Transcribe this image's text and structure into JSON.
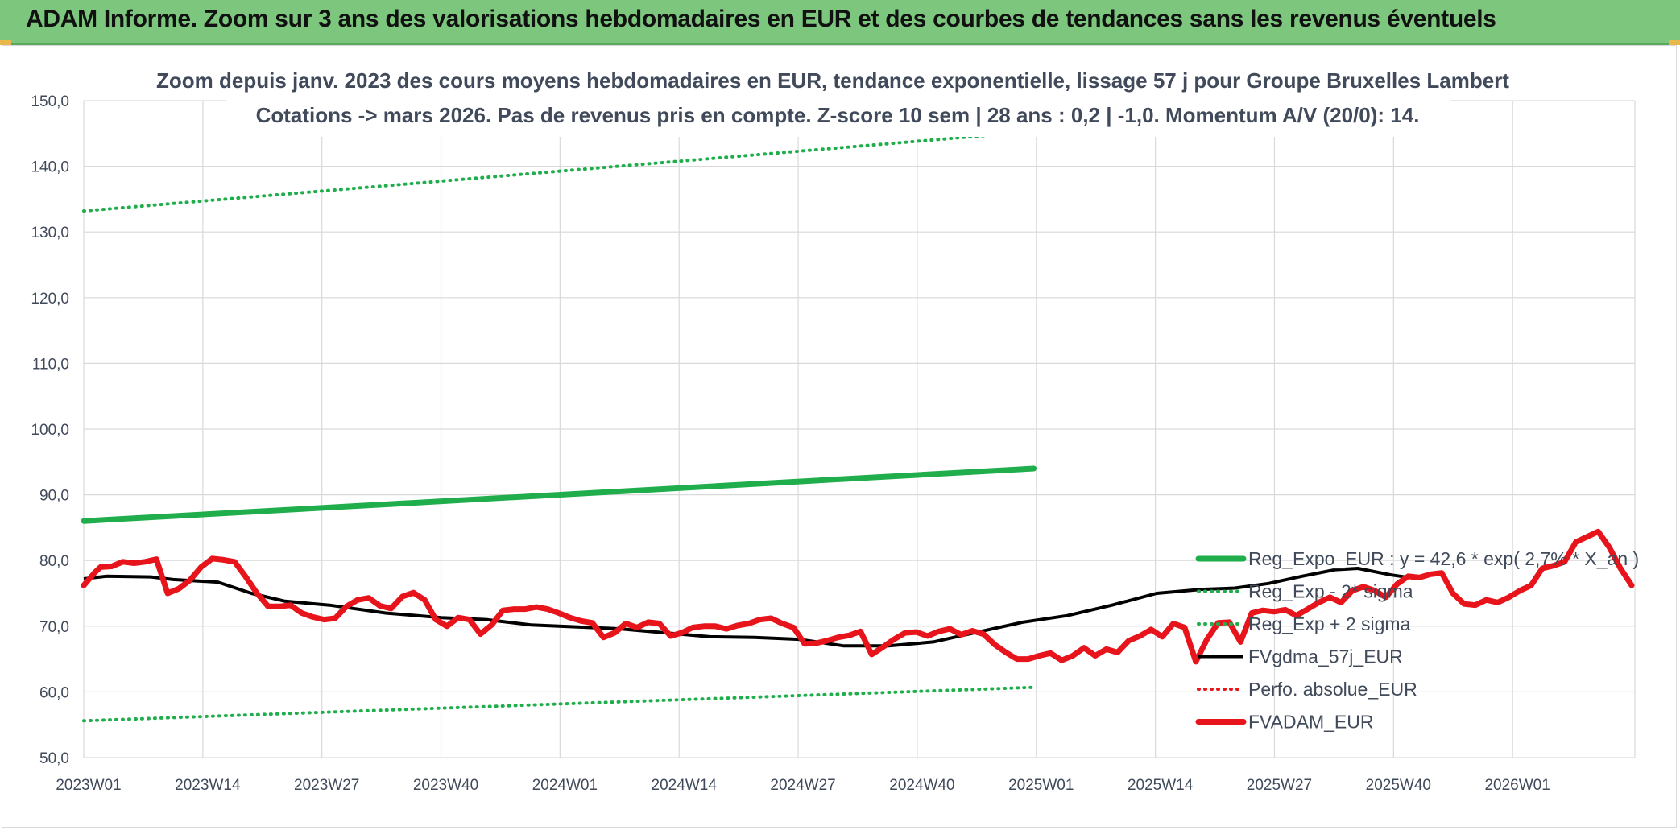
{
  "header": {
    "title": "ADAM Informe. Zoom sur 3 ans des valorisations hebdomadaires en EUR et des courbes de tendances sans les revenus éventuels"
  },
  "colors": {
    "banner": "#7cc67e",
    "trend": "#1fae4b",
    "price": "#e8141b",
    "smooth": "#000000",
    "perfo": "#e8141b",
    "grid": "#d9d9d9",
    "text": "#404a5a"
  },
  "chart_data": {
    "type": "line",
    "title": "Zoom depuis janv. 2023 des cours moyens hebdomadaires en EUR, tendance exponentielle, lissage 57 j pour Groupe Bruxelles Lambert",
    "subtitle": "Cotations -> mars 2026. Pas de revenus pris en compte. Z-score 10 sem | 28 ans : 0,2 | -1,0. Momentum A/V (20/0): 14.",
    "xlabel": "",
    "ylabel": "",
    "ylim": [
      50,
      150
    ],
    "yticks": [
      "50,0",
      "60,0",
      "70,0",
      "80,0",
      "90,0",
      "100,0",
      "110,0",
      "120,0",
      "130,0",
      "140,0",
      "150,0"
    ],
    "ytick_values": [
      50,
      60,
      70,
      80,
      90,
      100,
      110,
      120,
      130,
      140,
      150
    ],
    "xticks": [
      "2023W01",
      "2023W14",
      "2023W27",
      "2023W40",
      "2024W01",
      "2024W14",
      "2024W27",
      "2024W40",
      "2025W01",
      "2025W14",
      "2025W27",
      "2025W40",
      "2026W01"
    ],
    "xtick_step_weeks": 13,
    "n_weeks": 171,
    "grid": true,
    "legend_position": "bottom-right",
    "series": [
      {
        "name": "Reg_Expo_EUR : y = 42,6 * exp( 2,7% * X_an )",
        "style": "solid-thick",
        "color": "#1fae4b",
        "anchors": [
          [
            0,
            86.0
          ],
          [
            170,
            94.0
          ]
        ]
      },
      {
        "name": "Reg_Exp - 2* sigma",
        "style": "dotted",
        "color": "#1fae4b",
        "anchors": [
          [
            0,
            55.6
          ],
          [
            170,
            60.7
          ]
        ]
      },
      {
        "name": "Reg_Exp + 2 sigma",
        "style": "dotted",
        "color": "#1fae4b",
        "anchors": [
          [
            0,
            133.2
          ],
          [
            170,
            145.3
          ]
        ]
      },
      {
        "name": "FVgdma_57j_EUR",
        "style": "solid",
        "color": "#000000",
        "anchors": [
          [
            0,
            77.2
          ],
          [
            4,
            77.6
          ],
          [
            12,
            77.5
          ],
          [
            16,
            77.1
          ],
          [
            24,
            76.7
          ],
          [
            30,
            75.0
          ],
          [
            36,
            73.8
          ],
          [
            44,
            73.2
          ],
          [
            54,
            72.0
          ],
          [
            64,
            71.3
          ],
          [
            72,
            71.0
          ],
          [
            80,
            70.2
          ],
          [
            88,
            69.9
          ],
          [
            96,
            69.6
          ],
          [
            104,
            69.0
          ],
          [
            112,
            68.4
          ],
          [
            120,
            68.3
          ],
          [
            128,
            68.0
          ],
          [
            136,
            67.0
          ],
          [
            144,
            67.0
          ],
          [
            152,
            67.6
          ],
          [
            160,
            69.1
          ],
          [
            168,
            70.6
          ],
          [
            176,
            71.6
          ],
          [
            184,
            73.2
          ],
          [
            192,
            75.0
          ],
          [
            200,
            75.6
          ],
          [
            206,
            75.8
          ],
          [
            212,
            76.5
          ],
          [
            218,
            77.6
          ],
          [
            224,
            78.6
          ],
          [
            228,
            78.8
          ],
          [
            234,
            77.8
          ],
          [
            238,
            77.3
          ]
        ]
      },
      {
        "name": "Perfo. absolue_EUR",
        "style": "dotted",
        "color": "#e8141b",
        "anchors": []
      },
      {
        "name": "FVADAM_EUR",
        "style": "solid-thick",
        "color": "#e8141b",
        "anchors": [
          [
            0,
            76.2
          ],
          [
            2,
            78.2
          ],
          [
            3,
            79.0
          ],
          [
            5,
            79.1
          ],
          [
            7,
            79.8
          ],
          [
            9,
            79.6
          ],
          [
            11,
            79.8
          ],
          [
            13,
            80.2
          ],
          [
            15,
            75.0
          ],
          [
            17,
            75.7
          ],
          [
            19,
            77.0
          ],
          [
            21,
            79.0
          ],
          [
            23,
            80.3
          ],
          [
            25,
            80.1
          ],
          [
            27,
            79.8
          ],
          [
            29,
            77.5
          ],
          [
            31,
            75.0
          ],
          [
            33,
            73.0
          ],
          [
            35,
            73.0
          ],
          [
            37,
            73.2
          ],
          [
            39,
            72.0
          ],
          [
            41,
            71.4
          ],
          [
            43,
            71.0
          ],
          [
            45,
            71.2
          ],
          [
            47,
            73.0
          ],
          [
            49,
            74.0
          ],
          [
            51,
            74.3
          ],
          [
            53,
            73.1
          ],
          [
            55,
            72.7
          ],
          [
            57,
            74.5
          ],
          [
            59,
            75.1
          ],
          [
            61,
            74.0
          ],
          [
            63,
            71.0
          ],
          [
            65,
            70.0
          ],
          [
            67,
            71.3
          ],
          [
            69,
            71.0
          ],
          [
            71,
            68.8
          ],
          [
            73,
            70.2
          ],
          [
            75,
            72.4
          ],
          [
            77,
            72.6
          ],
          [
            79,
            72.6
          ],
          [
            81,
            72.9
          ],
          [
            83,
            72.6
          ],
          [
            85,
            72.0
          ],
          [
            87,
            71.3
          ],
          [
            89,
            70.8
          ],
          [
            91,
            70.5
          ],
          [
            93,
            68.3
          ],
          [
            95,
            69.0
          ],
          [
            97,
            70.4
          ],
          [
            99,
            69.8
          ],
          [
            101,
            70.6
          ],
          [
            103,
            70.4
          ],
          [
            105,
            68.5
          ],
          [
            107,
            69.0
          ],
          [
            109,
            69.8
          ],
          [
            111,
            70.0
          ],
          [
            113,
            70.0
          ],
          [
            115,
            69.6
          ],
          [
            117,
            70.1
          ],
          [
            119,
            70.4
          ],
          [
            121,
            71.0
          ],
          [
            123,
            71.2
          ],
          [
            125,
            70.4
          ],
          [
            127,
            69.8
          ],
          [
            129,
            67.3
          ],
          [
            131,
            67.4
          ],
          [
            133,
            67.8
          ],
          [
            135,
            68.3
          ],
          [
            137,
            68.6
          ],
          [
            139,
            69.2
          ],
          [
            141,
            65.7
          ],
          [
            143,
            66.8
          ],
          [
            145,
            68.0
          ],
          [
            147,
            69.0
          ],
          [
            149,
            69.1
          ],
          [
            151,
            68.5
          ],
          [
            153,
            69.2
          ],
          [
            155,
            69.6
          ],
          [
            157,
            68.7
          ],
          [
            159,
            69.3
          ],
          [
            161,
            68.8
          ],
          [
            163,
            67.2
          ],
          [
            165,
            66.0
          ],
          [
            167,
            65.0
          ],
          [
            169,
            65.0
          ],
          [
            171,
            65.5
          ],
          [
            173,
            65.9
          ],
          [
            175,
            64.8
          ],
          [
            177,
            65.5
          ],
          [
            179,
            66.7
          ],
          [
            181,
            65.5
          ],
          [
            183,
            66.5
          ],
          [
            185,
            66.0
          ],
          [
            187,
            67.8
          ],
          [
            189,
            68.5
          ],
          [
            191,
            69.5
          ],
          [
            193,
            68.4
          ],
          [
            195,
            70.4
          ],
          [
            197,
            69.8
          ],
          [
            199,
            64.6
          ],
          [
            201,
            68.0
          ],
          [
            203,
            70.5
          ],
          [
            205,
            70.6
          ],
          [
            207,
            67.6
          ],
          [
            209,
            72.0
          ],
          [
            211,
            72.4
          ],
          [
            213,
            72.2
          ],
          [
            215,
            72.5
          ],
          [
            217,
            71.6
          ],
          [
            219,
            72.6
          ],
          [
            221,
            73.6
          ],
          [
            223,
            74.4
          ],
          [
            225,
            73.6
          ],
          [
            227,
            75.4
          ],
          [
            229,
            76.0
          ],
          [
            231,
            75.4
          ],
          [
            233,
            74.4
          ],
          [
            235,
            76.4
          ],
          [
            237,
            77.6
          ],
          [
            239,
            77.4
          ],
          [
            241,
            77.9
          ],
          [
            243,
            78.1
          ],
          [
            245,
            75.0
          ],
          [
            247,
            73.4
          ],
          [
            249,
            73.2
          ],
          [
            251,
            74.0
          ],
          [
            253,
            73.6
          ],
          [
            255,
            74.4
          ],
          [
            257,
            75.4
          ],
          [
            259,
            76.2
          ],
          [
            261,
            78.8
          ],
          [
            263,
            79.2
          ],
          [
            265,
            79.8
          ],
          [
            267,
            82.8
          ],
          [
            269,
            83.6
          ],
          [
            271,
            84.4
          ],
          [
            273,
            82.0
          ],
          [
            275,
            78.8
          ],
          [
            277,
            76.2
          ]
        ]
      }
    ]
  }
}
